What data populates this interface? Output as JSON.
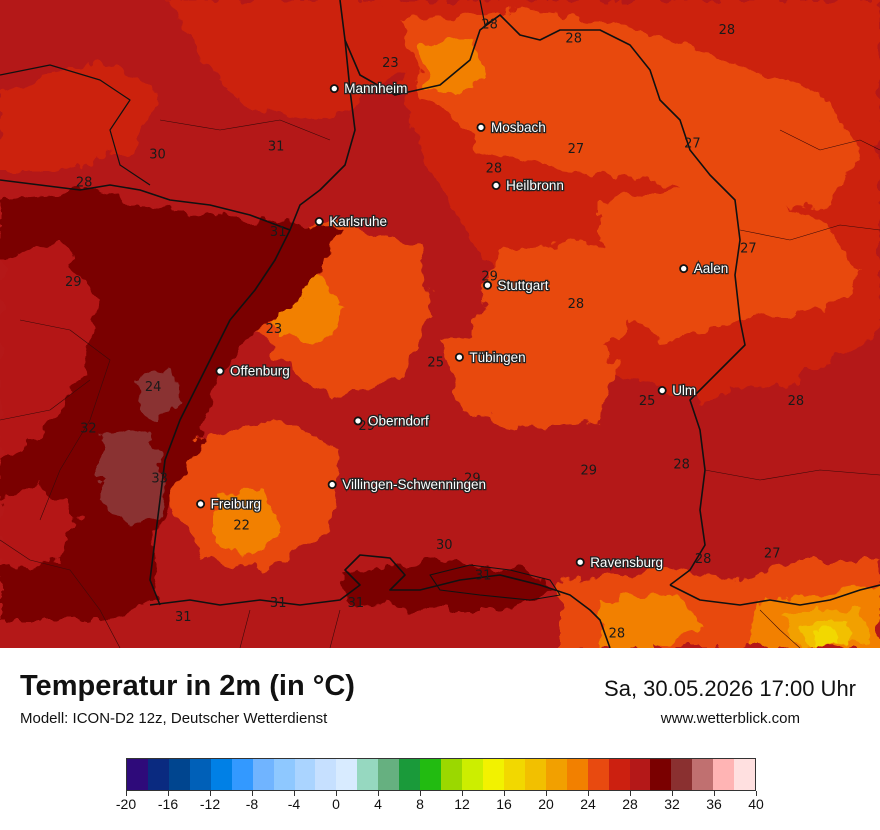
{
  "header": {
    "title": "Temperatur in 2m (in °C)",
    "model": "Modell: ICON-D2 12z, Deutscher Wetterdienst",
    "datetime": "Sa, 30.05.2026 17:00 Uhr",
    "website": "www.wetterblick.com"
  },
  "cities": [
    {
      "name": "Mannheim",
      "lon": 8.47,
      "lat": 49.49
    },
    {
      "name": "Mosbach",
      "lon": 9.15,
      "lat": 49.35
    },
    {
      "name": "Heilbronn",
      "lon": 9.22,
      "lat": 49.14
    },
    {
      "name": "Karlsruhe",
      "lon": 8.4,
      "lat": 49.01
    },
    {
      "name": "Aalen",
      "lon": 10.09,
      "lat": 48.84
    },
    {
      "name": "Stuttgart",
      "lon": 9.18,
      "lat": 48.78
    },
    {
      "name": "Tübingen",
      "lon": 9.05,
      "lat": 48.52
    },
    {
      "name": "Offenburg",
      "lon": 7.94,
      "lat": 48.47
    },
    {
      "name": "Ulm",
      "lon": 9.99,
      "lat": 48.4
    },
    {
      "name": "Oberndorf",
      "lon": 8.58,
      "lat": 48.29
    },
    {
      "name": "Villingen-Schwenningen",
      "lon": 8.46,
      "lat": 48.06
    },
    {
      "name": "Freiburg",
      "lon": 7.85,
      "lat": 47.99
    },
    {
      "name": "Ravensburg",
      "lon": 9.61,
      "lat": 47.78
    }
  ],
  "temperature_labels": [
    {
      "value": "28",
      "lon": 9.19,
      "lat": 49.72
    },
    {
      "value": "28",
      "lon": 9.58,
      "lat": 49.67
    },
    {
      "value": "28",
      "lon": 10.29,
      "lat": 49.7
    },
    {
      "value": "23",
      "lon": 8.73,
      "lat": 49.58
    },
    {
      "value": "31",
      "lon": 8.2,
      "lat": 49.28
    },
    {
      "value": "30",
      "lon": 7.65,
      "lat": 49.25
    },
    {
      "value": "27",
      "lon": 9.59,
      "lat": 49.27
    },
    {
      "value": "27",
      "lon": 10.13,
      "lat": 49.29
    },
    {
      "value": "28",
      "lon": 9.21,
      "lat": 49.2
    },
    {
      "value": "28",
      "lon": 7.31,
      "lat": 49.15
    },
    {
      "value": "31",
      "lon": 8.21,
      "lat": 48.97
    },
    {
      "value": "27",
      "lon": 10.39,
      "lat": 48.91
    },
    {
      "value": "29",
      "lon": 7.26,
      "lat": 48.79
    },
    {
      "value": "29",
      "lon": 9.19,
      "lat": 48.81
    },
    {
      "value": "28",
      "lon": 9.59,
      "lat": 48.71
    },
    {
      "value": "23",
      "lon": 8.19,
      "lat": 48.62
    },
    {
      "value": "25",
      "lon": 8.94,
      "lat": 48.5
    },
    {
      "value": "24",
      "lon": 7.63,
      "lat": 48.41
    },
    {
      "value": "25",
      "lon": 9.92,
      "lat": 48.36
    },
    {
      "value": "28",
      "lon": 10.61,
      "lat": 48.36
    },
    {
      "value": "32",
      "lon": 7.33,
      "lat": 48.26
    },
    {
      "value": "29",
      "lon": 8.62,
      "lat": 48.27
    },
    {
      "value": "29",
      "lon": 9.65,
      "lat": 48.11
    },
    {
      "value": "28",
      "lon": 10.08,
      "lat": 48.13
    },
    {
      "value": "33",
      "lon": 7.66,
      "lat": 48.08
    },
    {
      "value": "29",
      "lon": 9.11,
      "lat": 48.08
    },
    {
      "value": "22",
      "lon": 8.04,
      "lat": 47.91
    },
    {
      "value": "30",
      "lon": 8.98,
      "lat": 47.84
    },
    {
      "value": "28",
      "lon": 10.18,
      "lat": 47.79
    },
    {
      "value": "27",
      "lon": 10.5,
      "lat": 47.81
    },
    {
      "value": "31",
      "lon": 9.16,
      "lat": 47.73
    },
    {
      "value": "31",
      "lon": 8.21,
      "lat": 47.63
    },
    {
      "value": "31",
      "lon": 7.77,
      "lat": 47.58
    },
    {
      "value": "31",
      "lon": 8.57,
      "lat": 47.63
    },
    {
      "value": "28",
      "lon": 9.78,
      "lat": 47.52
    }
  ],
  "legend": {
    "colors": [
      "#2e0a7a",
      "#0a2a80",
      "#00458f",
      "#0060b8",
      "#0080e6",
      "#3399ff",
      "#70b4ff",
      "#8ec8ff",
      "#aad4ff",
      "#c6e0ff",
      "#d8ebff",
      "#96d8c0",
      "#66b080",
      "#1a9a3a",
      "#22bb11",
      "#9bd800",
      "#ccee00",
      "#f2f200",
      "#f2d800",
      "#f2c000",
      "#f2a000",
      "#f28000",
      "#e84a10",
      "#cc2010",
      "#b41818",
      "#7a0000",
      "#8a3030",
      "#c07070",
      "#ffb4b4",
      "#ffe0e0"
    ],
    "ticks": [
      "-20",
      "-16",
      "-12",
      "-8",
      "-4",
      "0",
      "4",
      "8",
      "12",
      "16",
      "20",
      "24",
      "28",
      "32",
      "36",
      "40"
    ]
  }
}
